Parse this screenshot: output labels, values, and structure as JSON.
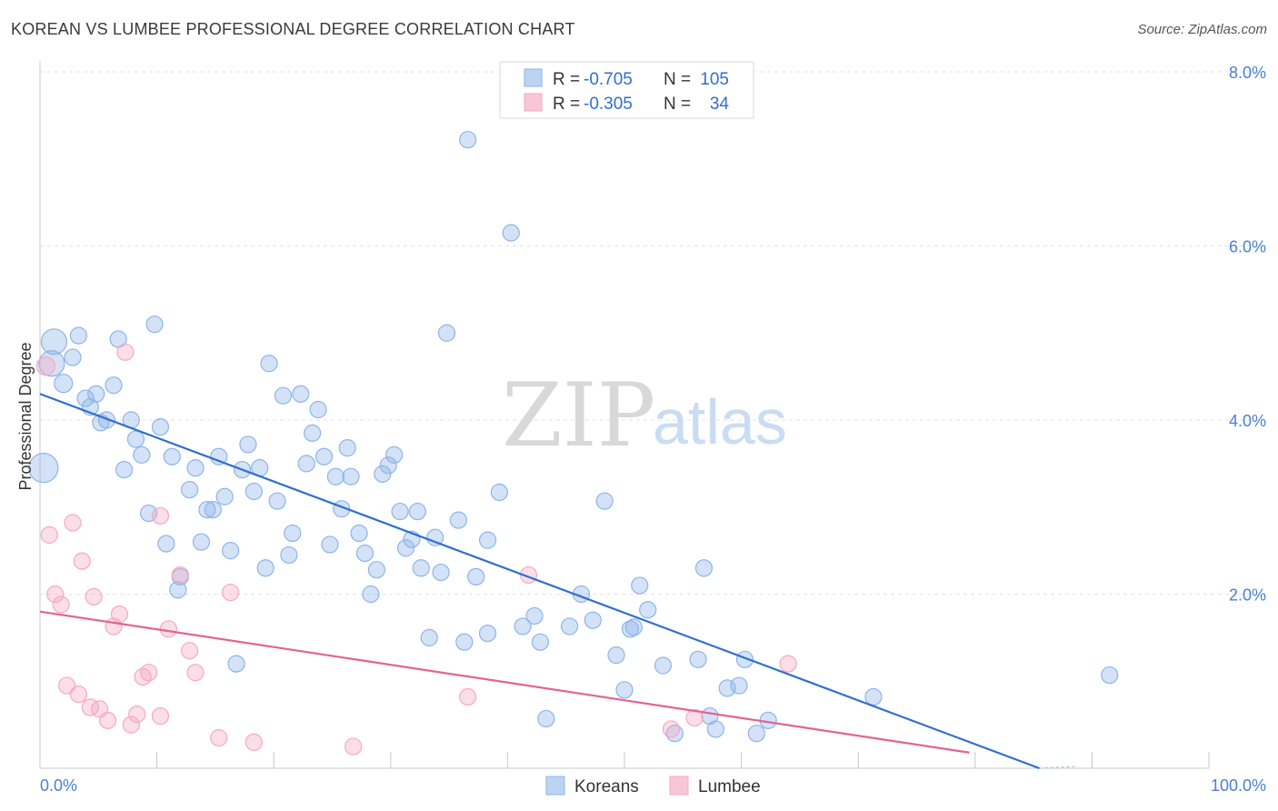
{
  "title": "KOREAN VS LUMBEE PROFESSIONAL DEGREE CORRELATION CHART",
  "source": "Source: ZipAtlas.com",
  "watermark": {
    "zip": "ZIP",
    "atlas": "atlas"
  },
  "chart_data": {
    "type": "scatter",
    "ylabel": "Professional Degree",
    "xlim": [
      0,
      100
    ],
    "ylim": [
      0,
      8.0
    ],
    "x_tick_labels": [
      "0.0%",
      "100.0%"
    ],
    "y_ticks": [
      2.0,
      4.0,
      6.0,
      8.0
    ],
    "y_tick_labels": [
      "2.0%",
      "4.0%",
      "6.0%",
      "8.0%"
    ],
    "grid": true,
    "legend_position": "top-center",
    "stats": [
      {
        "r_label": "R =",
        "r_value": "-0.705",
        "n_label": "N =",
        "n_value": "105"
      },
      {
        "r_label": "R =",
        "r_value": "-0.305",
        "n_label": "N =",
        "n_value": "34"
      }
    ],
    "series": [
      {
        "name": "Koreans",
        "color": "#8db4ea",
        "line_color": "#2f6fd0",
        "trend": {
          "x": [
            0,
            85.5
          ],
          "y": [
            4.3,
            0.0
          ]
        },
        "points": [
          [
            1.2,
            4.9,
            14
          ],
          [
            1.0,
            4.65,
            14
          ],
          [
            0.3,
            3.45,
            16
          ],
          [
            2.0,
            4.42,
            10
          ],
          [
            2.8,
            4.72,
            9
          ],
          [
            3.3,
            4.97,
            9
          ],
          [
            3.9,
            4.25,
            9
          ],
          [
            4.3,
            4.15,
            9
          ],
          [
            4.8,
            4.3,
            9
          ],
          [
            5.2,
            3.97,
            9
          ],
          [
            5.7,
            4.0,
            9
          ],
          [
            6.3,
            4.4,
            9
          ],
          [
            6.7,
            4.93,
            9
          ],
          [
            7.2,
            3.43,
            9
          ],
          [
            7.8,
            4.0,
            9
          ],
          [
            8.2,
            3.78,
            9
          ],
          [
            8.7,
            3.6,
            9
          ],
          [
            9.3,
            2.93,
            9
          ],
          [
            9.8,
            5.1,
            9
          ],
          [
            10.3,
            3.92,
            9
          ],
          [
            10.8,
            2.58,
            9
          ],
          [
            11.3,
            3.58,
            9
          ],
          [
            11.8,
            2.05,
            9
          ],
          [
            12.0,
            2.2,
            9
          ],
          [
            12.8,
            3.2,
            9
          ],
          [
            13.3,
            3.45,
            9
          ],
          [
            13.8,
            2.6,
            9
          ],
          [
            14.3,
            2.97,
            9
          ],
          [
            14.8,
            2.97,
            9
          ],
          [
            15.3,
            3.58,
            9
          ],
          [
            15.8,
            3.12,
            9
          ],
          [
            16.3,
            2.5,
            9
          ],
          [
            16.8,
            1.2,
            9
          ],
          [
            17.3,
            3.43,
            9
          ],
          [
            17.8,
            3.72,
            9
          ],
          [
            18.3,
            3.18,
            9
          ],
          [
            18.8,
            3.45,
            9
          ],
          [
            19.3,
            2.3,
            9
          ],
          [
            19.6,
            4.65,
            9
          ],
          [
            20.3,
            3.07,
            9
          ],
          [
            20.8,
            4.28,
            9
          ],
          [
            21.3,
            2.45,
            9
          ],
          [
            21.6,
            2.7,
            9
          ],
          [
            22.3,
            4.3,
            9
          ],
          [
            22.8,
            3.5,
            9
          ],
          [
            23.3,
            3.85,
            9
          ],
          [
            23.8,
            4.12,
            9
          ],
          [
            24.3,
            3.58,
            9
          ],
          [
            24.8,
            2.57,
            9
          ],
          [
            25.3,
            3.35,
            9
          ],
          [
            25.8,
            2.98,
            9
          ],
          [
            26.3,
            3.68,
            9
          ],
          [
            26.6,
            3.35,
            9
          ],
          [
            27.3,
            2.7,
            9
          ],
          [
            27.8,
            2.47,
            9
          ],
          [
            28.3,
            2.0,
            9
          ],
          [
            28.8,
            2.28,
            9
          ],
          [
            29.3,
            3.38,
            9
          ],
          [
            29.8,
            3.48,
            9
          ],
          [
            30.3,
            3.6,
            9
          ],
          [
            30.8,
            2.95,
            9
          ],
          [
            31.3,
            2.53,
            9
          ],
          [
            31.8,
            2.63,
            9
          ],
          [
            32.3,
            2.95,
            9
          ],
          [
            32.6,
            2.3,
            9
          ],
          [
            33.3,
            1.5,
            9
          ],
          [
            33.8,
            2.65,
            9
          ],
          [
            34.3,
            2.25,
            9
          ],
          [
            34.8,
            5.0,
            9
          ],
          [
            35.8,
            2.85,
            9
          ],
          [
            36.3,
            1.45,
            9
          ],
          [
            37.3,
            2.2,
            9
          ],
          [
            38.3,
            1.55,
            9
          ],
          [
            38.3,
            2.62,
            9
          ],
          [
            39.3,
            3.17,
            9
          ],
          [
            40.3,
            6.15,
            9
          ],
          [
            41.3,
            1.63,
            9
          ],
          [
            42.3,
            1.75,
            9
          ],
          [
            42.8,
            1.45,
            9
          ],
          [
            43.3,
            0.57,
            9
          ],
          [
            45.3,
            1.63,
            9
          ],
          [
            46.3,
            2.0,
            9
          ],
          [
            47.3,
            1.7,
            9
          ],
          [
            48.3,
            3.07,
            9
          ],
          [
            49.3,
            1.3,
            9
          ],
          [
            50.0,
            0.9,
            9
          ],
          [
            50.5,
            1.6,
            9
          ],
          [
            50.8,
            1.62,
            9
          ],
          [
            51.3,
            2.1,
            9
          ],
          [
            52.0,
            1.82,
            9
          ],
          [
            53.3,
            1.18,
            9
          ],
          [
            54.3,
            0.4,
            9
          ],
          [
            56.3,
            1.25,
            9
          ],
          [
            56.8,
            2.3,
            9
          ],
          [
            57.3,
            0.6,
            9
          ],
          [
            57.8,
            0.45,
            9
          ],
          [
            58.8,
            0.92,
            9
          ],
          [
            59.8,
            0.95,
            9
          ],
          [
            60.3,
            1.25,
            9
          ],
          [
            61.3,
            0.4,
            9
          ],
          [
            62.3,
            0.55,
            9
          ],
          [
            71.3,
            0.82,
            9
          ],
          [
            91.5,
            1.07,
            9
          ],
          [
            36.6,
            7.22,
            9
          ]
        ]
      },
      {
        "name": "Lumbee",
        "color": "#f5a8c2",
        "line_color": "#e2648f",
        "trend": {
          "x": [
            0,
            79.5
          ],
          "y": [
            1.8,
            0.18
          ]
        },
        "points": [
          [
            0.5,
            4.62,
            10
          ],
          [
            0.8,
            2.68,
            9
          ],
          [
            1.3,
            2.0,
            9
          ],
          [
            1.8,
            1.88,
            9
          ],
          [
            2.3,
            0.95,
            9
          ],
          [
            2.8,
            2.82,
            9
          ],
          [
            3.3,
            0.85,
            9
          ],
          [
            3.6,
            2.38,
            9
          ],
          [
            4.3,
            0.7,
            9
          ],
          [
            4.6,
            1.97,
            9
          ],
          [
            5.1,
            0.68,
            9
          ],
          [
            5.8,
            0.55,
            9
          ],
          [
            6.3,
            1.63,
            9
          ],
          [
            6.8,
            1.77,
            9
          ],
          [
            7.3,
            4.78,
            9
          ],
          [
            7.8,
            0.5,
            9
          ],
          [
            8.3,
            0.62,
            9
          ],
          [
            8.8,
            1.05,
            9
          ],
          [
            9.3,
            1.1,
            9
          ],
          [
            10.3,
            0.6,
            9
          ],
          [
            10.3,
            2.9,
            9
          ],
          [
            11.0,
            1.6,
            9
          ],
          [
            12.0,
            2.22,
            9
          ],
          [
            12.8,
            1.35,
            9
          ],
          [
            13.3,
            1.1,
            9
          ],
          [
            15.3,
            0.35,
            9
          ],
          [
            16.3,
            2.02,
            9
          ],
          [
            18.3,
            0.3,
            9
          ],
          [
            26.8,
            0.25,
            9
          ],
          [
            36.6,
            0.82,
            9
          ],
          [
            41.8,
            2.22,
            9
          ],
          [
            54.0,
            0.45,
            9
          ],
          [
            56.0,
            0.58,
            9
          ],
          [
            64.0,
            1.2,
            9
          ]
        ]
      }
    ]
  }
}
